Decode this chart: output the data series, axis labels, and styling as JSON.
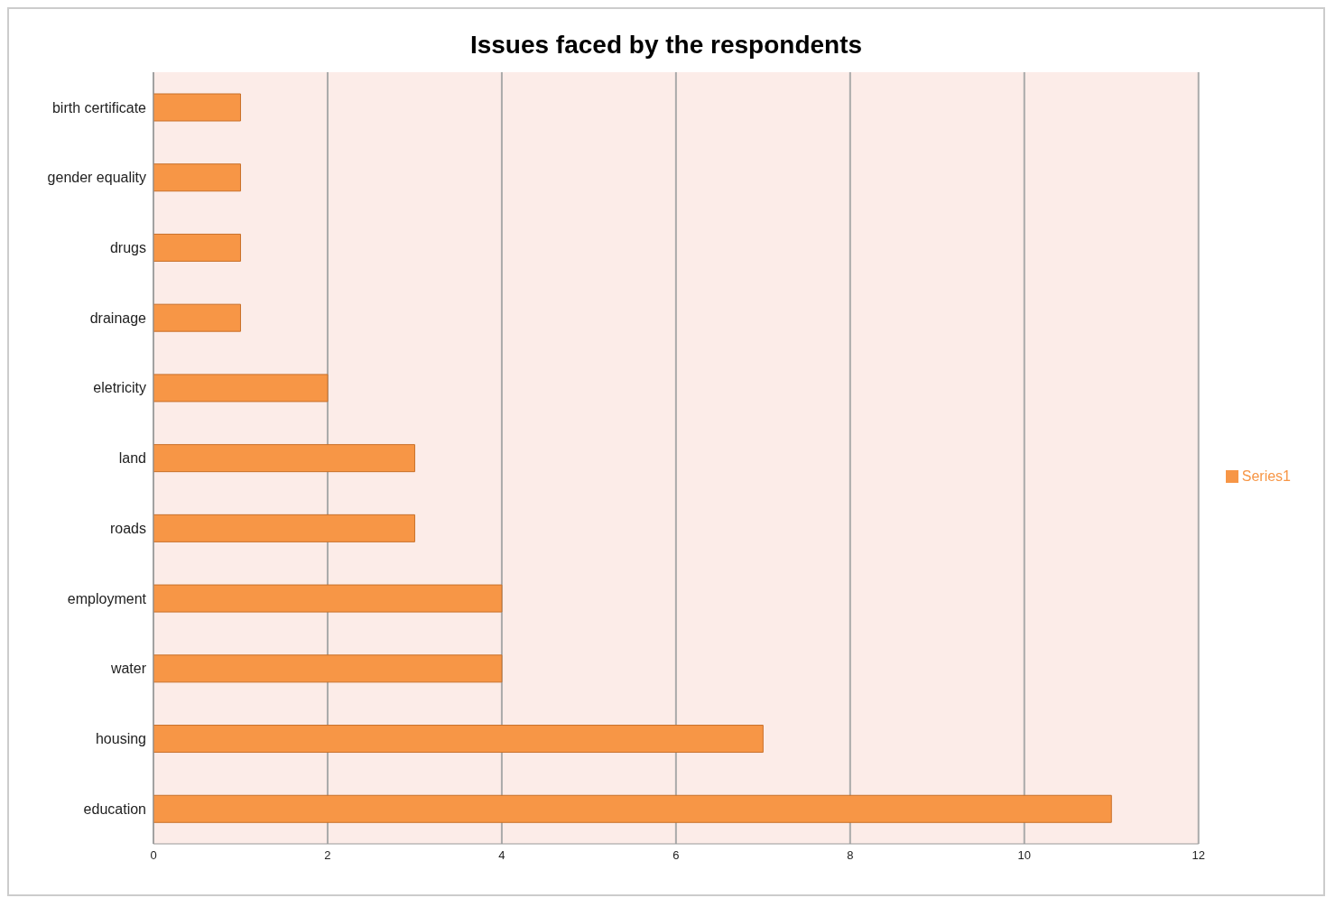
{
  "chart_data": {
    "type": "bar",
    "orientation": "horizontal",
    "title": "Issues faced by the respondents",
    "categories": [
      "birth certificate",
      "gender equality",
      "drugs",
      "drainage",
      "eletricity",
      "land",
      "roads",
      "employment",
      "water",
      "housing",
      "education"
    ],
    "series": [
      {
        "name": "Series1",
        "color": "#f79646",
        "values": [
          1,
          1,
          1,
          1,
          2,
          3,
          3,
          4,
          4,
          7,
          11
        ]
      }
    ],
    "xlim": [
      0,
      12
    ],
    "xticks": [
      0,
      2,
      4,
      6,
      8,
      10,
      12
    ],
    "grid": "x",
    "legend": "right"
  }
}
